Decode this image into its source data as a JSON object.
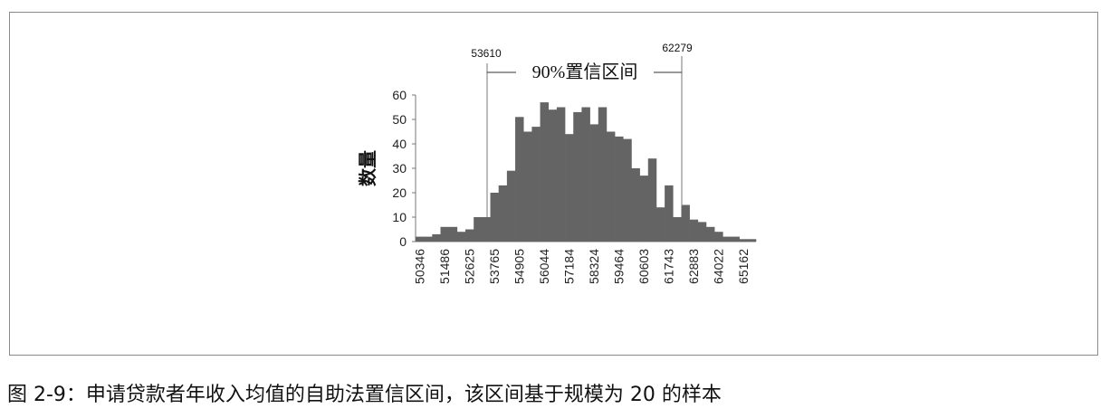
{
  "chart_data": {
    "type": "bar",
    "ylabel": "数量",
    "xlabel": "",
    "ylim": [
      0,
      60
    ],
    "yticks": [
      "0",
      "10",
      "20",
      "30",
      "40",
      "50",
      "60"
    ],
    "tick_labels": [
      "50346",
      "51486",
      "52625",
      "53765",
      "54905",
      "56044",
      "57184",
      "58324",
      "59464",
      "60603",
      "61743",
      "62883",
      "64022",
      "65162"
    ],
    "values": [
      2,
      2,
      3,
      6,
      6,
      4,
      5,
      10,
      10,
      20,
      23,
      29,
      51,
      45,
      47,
      57,
      54,
      55,
      44,
      53,
      55,
      48,
      55,
      45,
      43,
      42,
      30,
      27,
      34,
      14,
      23,
      10,
      15,
      9,
      8,
      6,
      4,
      2,
      2,
      1,
      1
    ],
    "bar_color": "#646464",
    "confidence_interval": {
      "label": "90%置信区间",
      "lower": "53610",
      "upper": "62279"
    }
  },
  "caption": "图 2-9：申请贷款者年收入均值的自助法置信区间，该区间基于规模为 20 的样本"
}
